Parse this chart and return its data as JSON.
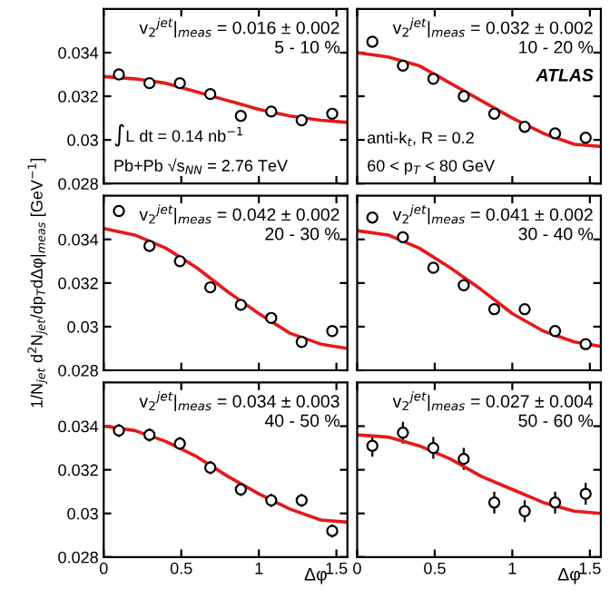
{
  "chart_data": [
    {
      "type": "scatter",
      "xlim": [
        0,
        1.5708
      ],
      "ylim": [
        0.028,
        0.036
      ],
      "xticks": [
        0,
        0.5,
        1,
        1.5
      ],
      "yticks": [
        0.028,
        0.03,
        0.032,
        0.034
      ],
      "tick_labels": "y",
      "marker": "circle",
      "annotations": [
        "v$_{2}$$^{jet}$|$_{meas}$ = 0.016 ± 0.002",
        "5 - 10 %",
        "∫L dt = 0.14 nb$^{−1}$",
        "Pb+Pb √s$_{NN}$ = 2.76 TeV"
      ],
      "series": [
        {
          "color": "#000000",
          "x": [
            0.098,
            0.295,
            0.491,
            0.687,
            0.884,
            1.08,
            1.276,
            1.473
          ],
          "values": [
            0.033,
            0.0326,
            0.0326,
            0.0321,
            0.0311,
            0.0313,
            0.0309,
            0.0312
          ]
        },
        {
          "type": "line",
          "color": "#e41a1c",
          "marker": "none",
          "x": [
            0,
            0.2,
            0.4,
            0.6,
            0.8,
            1.0,
            1.2,
            1.4,
            1.5708
          ],
          "values": [
            0.0329,
            0.0328,
            0.0326,
            0.0322,
            0.0318,
            0.0314,
            0.0311,
            0.0309,
            0.0308
          ]
        }
      ]
    },
    {
      "type": "scatter",
      "xlim": [
        0,
        1.5708
      ],
      "ylim": [
        0.028,
        0.036
      ],
      "xticks": [
        0,
        0.5,
        1,
        1.5
      ],
      "yticks": [
        0.028,
        0.03,
        0.032,
        0.034
      ],
      "tick_labels": false,
      "marker": "circle",
      "annotations": [
        "v$_{2}$$^{jet}$|$_{meas}$ = 0.032 ± 0.002",
        "10 - 20 %",
        "ATLAS",
        "anti-k$_{t}$, R = 0.2",
        "60 < p$_{T}$ < 80 GeV"
      ],
      "series": [
        {
          "color": "#000000",
          "x": [
            0.098,
            0.295,
            0.491,
            0.687,
            0.884,
            1.08,
            1.276,
            1.473
          ],
          "values": [
            0.0345,
            0.0334,
            0.0328,
            0.032,
            0.0312,
            0.0306,
            0.0303,
            0.0301
          ]
        },
        {
          "type": "line",
          "color": "#e41a1c",
          "marker": "none",
          "x": [
            0,
            0.2,
            0.4,
            0.6,
            0.8,
            1.0,
            1.2,
            1.4,
            1.5708
          ],
          "values": [
            0.034,
            0.0338,
            0.0334,
            0.0326,
            0.0318,
            0.031,
            0.0303,
            0.0298,
            0.0297
          ]
        }
      ]
    },
    {
      "type": "scatter",
      "xlim": [
        0,
        1.5708
      ],
      "ylim": [
        0.028,
        0.036
      ],
      "xticks": [
        0,
        0.5,
        1,
        1.5
      ],
      "yticks": [
        0.028,
        0.03,
        0.032,
        0.034
      ],
      "tick_labels": "y",
      "marker": "circle",
      "ylabel": "1/N$_{jet}$ d$^{2}$N$_{jet}$/dp$_{T}$dΔφ|$_{meas}$ [GeV$^{−1}$]",
      "annotations": [
        "v$_{2}$$^{jet}$|$_{meas}$ = 0.042 ± 0.002",
        "20 - 30 %"
      ],
      "series": [
        {
          "color": "#000000",
          "x": [
            0.098,
            0.295,
            0.491,
            0.687,
            0.884,
            1.08,
            1.276,
            1.473
          ],
          "values": [
            0.0353,
            0.0337,
            0.033,
            0.0318,
            0.031,
            0.0304,
            0.0293,
            0.0298
          ]
        },
        {
          "type": "line",
          "color": "#e41a1c",
          "marker": "none",
          "x": [
            0,
            0.2,
            0.4,
            0.6,
            0.8,
            1.0,
            1.2,
            1.4,
            1.5708
          ],
          "values": [
            0.0345,
            0.0342,
            0.0336,
            0.0327,
            0.0316,
            0.0306,
            0.0297,
            0.0292,
            0.029
          ]
        }
      ]
    },
    {
      "type": "scatter",
      "xlim": [
        0,
        1.5708
      ],
      "ylim": [
        0.028,
        0.036
      ],
      "xticks": [
        0,
        0.5,
        1,
        1.5
      ],
      "yticks": [
        0.028,
        0.03,
        0.032,
        0.034
      ],
      "tick_labels": false,
      "marker": "circle",
      "annotations": [
        "v$_{2}$$^{jet}$|$_{meas}$ = 0.041 ± 0.002",
        "30 - 40 %"
      ],
      "series": [
        {
          "color": "#000000",
          "x": [
            0.098,
            0.295,
            0.491,
            0.687,
            0.884,
            1.08,
            1.276,
            1.473
          ],
          "values": [
            0.035,
            0.0341,
            0.0327,
            0.0319,
            0.0308,
            0.0308,
            0.0298,
            0.0292
          ]
        },
        {
          "type": "line",
          "color": "#e41a1c",
          "marker": "none",
          "x": [
            0,
            0.2,
            0.4,
            0.6,
            0.8,
            1.0,
            1.2,
            1.4,
            1.5708
          ],
          "values": [
            0.0344,
            0.0342,
            0.0336,
            0.0327,
            0.0317,
            0.0306,
            0.0298,
            0.0293,
            0.0291
          ]
        }
      ]
    },
    {
      "type": "scatter",
      "xlim": [
        0,
        1.5708
      ],
      "ylim": [
        0.028,
        0.036
      ],
      "xticks": [
        0,
        0.5,
        1,
        1.5
      ],
      "yticks": [
        0.028,
        0.03,
        0.032,
        0.034
      ],
      "marker": "circle",
      "xlabel": "Δφ",
      "annotations": [
        "v$_{2}$$^{jet}$|$_{meas}$ = 0.034 ± 0.003",
        "40 - 50 %"
      ],
      "series": [
        {
          "color": "#000000",
          "x": [
            0.098,
            0.295,
            0.491,
            0.687,
            0.884,
            1.08,
            1.276,
            1.473
          ],
          "values": [
            0.0338,
            0.0336,
            0.0332,
            0.0321,
            0.0311,
            0.0306,
            0.0306,
            0.0292
          ],
          "errors": [
            0.0003,
            0.0003,
            0.0003,
            0.0003,
            0.0003,
            0.0003,
            0.0003,
            0.0003
          ]
        },
        {
          "type": "line",
          "color": "#e41a1c",
          "marker": "none",
          "x": [
            0,
            0.2,
            0.4,
            0.6,
            0.8,
            1.0,
            1.2,
            1.4,
            1.5708
          ],
          "values": [
            0.034,
            0.0338,
            0.0333,
            0.0326,
            0.0317,
            0.0309,
            0.0302,
            0.0297,
            0.0296
          ]
        }
      ]
    },
    {
      "type": "scatter",
      "xlim": [
        0,
        1.5708
      ],
      "ylim": [
        0.028,
        0.036
      ],
      "xticks": [
        0,
        0.5,
        1,
        1.5
      ],
      "yticks": [
        0.028,
        0.03,
        0.032,
        0.034
      ],
      "tick_labels": "x",
      "marker": "circle",
      "xlabel": "Δφ",
      "annotations": [
        "v$_{2}$$^{jet}$|$_{meas}$ = 0.027 ± 0.004",
        "50 - 60 %"
      ],
      "series": [
        {
          "color": "#000000",
          "x": [
            0.098,
            0.295,
            0.491,
            0.687,
            0.884,
            1.08,
            1.276,
            1.473
          ],
          "values": [
            0.0331,
            0.0337,
            0.033,
            0.0325,
            0.0305,
            0.0301,
            0.0305,
            0.0309
          ],
          "errors": [
            0.0005,
            0.0005,
            0.0005,
            0.0005,
            0.0005,
            0.0005,
            0.0005,
            0.0005
          ]
        },
        {
          "type": "line",
          "color": "#e41a1c",
          "marker": "none",
          "x": [
            0,
            0.2,
            0.4,
            0.6,
            0.8,
            1.0,
            1.2,
            1.4,
            1.5708
          ],
          "values": [
            0.0336,
            0.0335,
            0.0331,
            0.0325,
            0.0317,
            0.0311,
            0.0305,
            0.0301,
            0.03
          ]
        }
      ]
    }
  ]
}
